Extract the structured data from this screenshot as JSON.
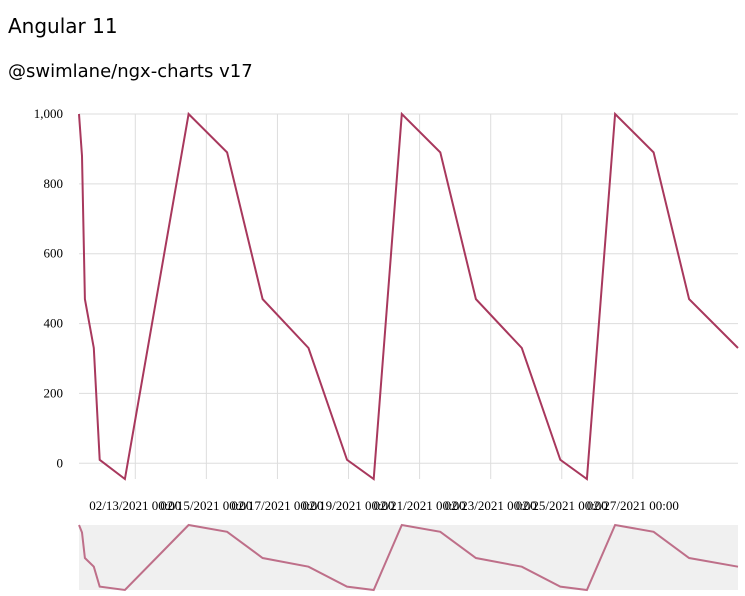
{
  "header": {
    "title": "Angular 11",
    "subtitle": "@swimlane/ngx-charts v17"
  },
  "colors": {
    "series": "#a8385d",
    "grid": "#dddddd",
    "navigator_bg": "#f0f0f0"
  },
  "chart_data": {
    "type": "line",
    "title": "",
    "xlabel": "",
    "ylabel": "",
    "ylim": [
      -45,
      1000
    ],
    "y_ticks": [
      "0",
      "200",
      "400",
      "600",
      "800",
      "1,000"
    ],
    "y_tick_values": [
      0,
      200,
      400,
      600,
      800,
      1000
    ],
    "x_ticks": [
      "02/13/2021 00:00",
      "02/15/2021 00:00",
      "02/17/2021 00:00",
      "02/19/2021 00:00",
      "02/21/2021 00:00",
      "02/23/2021 00:00",
      "02/25/2021 00:00",
      "02/27/2021 00:00"
    ],
    "x_tick_dates": [
      "2021-02-13",
      "2021-02-15",
      "2021-02-17",
      "2021-02-19",
      "2021-02-21",
      "2021-02-23",
      "2021-02-25",
      "2021-02-27"
    ],
    "grid": true,
    "series": [
      {
        "x": [
          "2021-02-11T10:00",
          "2021-02-11T12:00",
          "2021-02-11T14:00",
          "2021-02-11T20:00",
          "2021-02-12T00:00",
          "2021-02-12T17:00",
          "2021-02-14T12:00",
          "2021-02-15T14:00",
          "2021-02-16T14:00",
          "2021-02-17T21:00",
          "2021-02-18T23:00",
          "2021-02-19T17:00",
          "2021-02-20T12:00",
          "2021-02-21T14:00",
          "2021-02-22T14:00",
          "2021-02-23T21:00",
          "2021-02-24T23:00",
          "2021-02-25T17:00",
          "2021-02-26T12:00",
          "2021-02-27T14:00",
          "2021-02-28T14:00",
          "2021-03-01T23:00"
        ],
        "values": [
          1000,
          880,
          470,
          330,
          10,
          -45,
          1000,
          890,
          470,
          330,
          10,
          -45,
          1000,
          890,
          470,
          330,
          10,
          -45,
          1000,
          890,
          470,
          330
        ]
      }
    ]
  }
}
